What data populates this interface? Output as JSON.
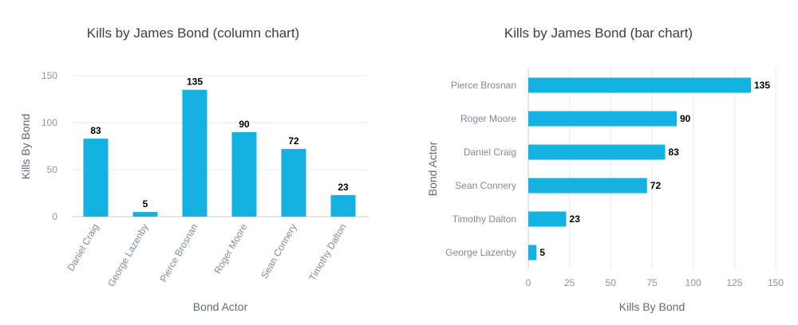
{
  "colors": {
    "bar": "#14b2e2",
    "grid": "#e6ebf1",
    "axis": "#c9d0d8"
  },
  "chart_data": [
    {
      "type": "bar",
      "orientation": "vertical",
      "title": "Kills by James Bond (column chart)",
      "xlabel": "Bond Actor",
      "ylabel": "Kills By Bond",
      "categories": [
        "Daniel Craig",
        "George Lazenby",
        "Pierce Brosnan",
        "Roger Moore",
        "Sean Connery",
        "Timothy Dalton"
      ],
      "values": [
        83,
        5,
        135,
        90,
        72,
        23
      ],
      "ylim": [
        0,
        150
      ],
      "ticks": [
        0,
        50,
        100,
        150
      ],
      "grid": true,
      "data_labels": true
    },
    {
      "type": "bar",
      "orientation": "horizontal",
      "title": "Kills by James Bond (bar chart)",
      "xlabel": "Kills By Bond",
      "ylabel": "Bond Actor",
      "categories": [
        "Pierce Brosnan",
        "Roger Moore",
        "Daniel Craig",
        "Sean Connery",
        "Timothy Dalton",
        "George Lazenby"
      ],
      "values": [
        135,
        90,
        83,
        72,
        23,
        5
      ],
      "xlim": [
        0,
        150
      ],
      "ticks": [
        0,
        25,
        50,
        75,
        100,
        125,
        150
      ],
      "grid": true,
      "data_labels": true
    }
  ]
}
